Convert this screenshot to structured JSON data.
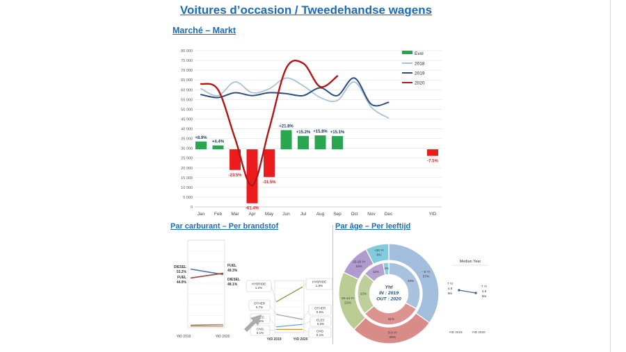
{
  "page": {
    "title": "Voitures d’occasion / Tweedehandse wagens",
    "accent_color": "#1a6bb8"
  },
  "chart_data": [
    {
      "id": "market",
      "type": "combo-bar-line",
      "title": "Marché – Markt",
      "categories": [
        "Jan",
        "Feb",
        "Mar",
        "Apr",
        "May",
        "Jun",
        "Jul",
        "Aug",
        "Sep",
        "Oct",
        "Nov",
        "Dec"
      ],
      "ylim": [
        0,
        80000
      ],
      "ytick_step": 5000,
      "tick_format": "thousands-space",
      "grid": true,
      "legend_position": "top-right",
      "bar_series": {
        "name": "Evol",
        "pos_color": "#28a750",
        "neg_color": "#ed1c1c",
        "pos_label_color": "#1f3864",
        "neg_label_color": "#e31b1b",
        "values_pct": [
          8.9,
          4.4,
          -23.5,
          -61.4,
          -31.5,
          21.8,
          15.2,
          15.8,
          15.1,
          null,
          null,
          null
        ],
        "ytd": {
          "label": "YtD",
          "value_pct": -7.5
        }
      },
      "line_series": [
        {
          "name": "2018",
          "color": "#a3bfd4",
          "values": [
            60500,
            57000,
            64000,
            58500,
            60500,
            66000,
            62000,
            56000,
            54500,
            64000,
            51000,
            45500
          ]
        },
        {
          "name": "2019",
          "color": "#274e7d",
          "values": [
            57500,
            56000,
            58500,
            57000,
            58500,
            58000,
            57000,
            61000,
            57000,
            66000,
            52500,
            53500
          ]
        },
        {
          "name": "2020",
          "color": "#b11616",
          "values": [
            63000,
            60000,
            35000,
            11000,
            40000,
            71000,
            73500,
            61500,
            67000
          ]
        }
      ]
    },
    {
      "id": "fuel",
      "type": "line",
      "title": "Par carburant – Per brandstof",
      "x_labels": [
        "YtD 2019",
        "YtD 2020"
      ],
      "ylim": [
        0,
        80
      ],
      "series": [
        {
          "name": "DIESEL",
          "color": "#4a7ab5",
          "values": [
            53.2,
            48.1
          ]
        },
        {
          "name": "FUEL",
          "color": "#9e4444",
          "values": [
            44.9,
            49.3
          ]
        },
        {
          "name": "HYBRIDE",
          "color": "#8f8f33",
          "values": [
            1.2,
            1.8
          ]
        },
        {
          "name": "OTHER",
          "color": "#9a9a9a",
          "values": [
            0.7,
            0.5
          ]
        },
        {
          "name": "ELEC",
          "color": "#4f9fd8",
          "values": [
            0.2,
            0.3
          ]
        },
        {
          "name": "CNG",
          "color": "#e08a28",
          "values": [
            0.1,
            0.1
          ]
        }
      ],
      "zoom_panel": {
        "ylim": [
          0,
          2
        ],
        "x_labels": [
          "YtD 2019",
          "YtD 2020"
        ],
        "series_names": [
          "HYBRIDE",
          "OTHER",
          "ELEC",
          "CNG"
        ]
      }
    },
    {
      "id": "age",
      "type": "donut",
      "title": "Par âge – Per leeftijd",
      "center_lines": [
        "Ytd",
        "IN : 2019",
        "OUT : 2020"
      ],
      "center_color": "#1e4e79",
      "inner_year": "2019",
      "outer_year": "2020",
      "segments": [
        {
          "label": "- 5 Yr",
          "outer_pct": 37,
          "inner_pct": 33,
          "color": "#a2bedc"
        },
        {
          "label": "5-9 Yr",
          "outer_pct": 29,
          "inner_pct": 31,
          "color": "#d98b87"
        },
        {
          "label": "10-14 Yr",
          "outer_pct": 21,
          "inner_pct": 22,
          "color": "#bacb94"
        },
        {
          "label": "15-19 Yr",
          "outer_pct": 11,
          "inner_pct": 11,
          "color": "#af9bce"
        },
        {
          "label": "+20 Yr",
          "outer_pct": 8,
          "inner_pct": 3,
          "color": "#82cbdd"
        }
      ]
    },
    {
      "id": "median",
      "type": "line",
      "title": "Median Year",
      "x_labels": [
        "YtD 2019",
        "YtD 2020"
      ],
      "series": [
        {
          "name": "Median",
          "color": "#44688c",
          "values": [
            7.4,
            7.375
          ]
        }
      ],
      "point_labels": [
        [
          "7 Yr",
          "4.8",
          "Mo"
        ],
        [
          "7 Yr",
          "4.5",
          "Mo"
        ]
      ]
    }
  ]
}
